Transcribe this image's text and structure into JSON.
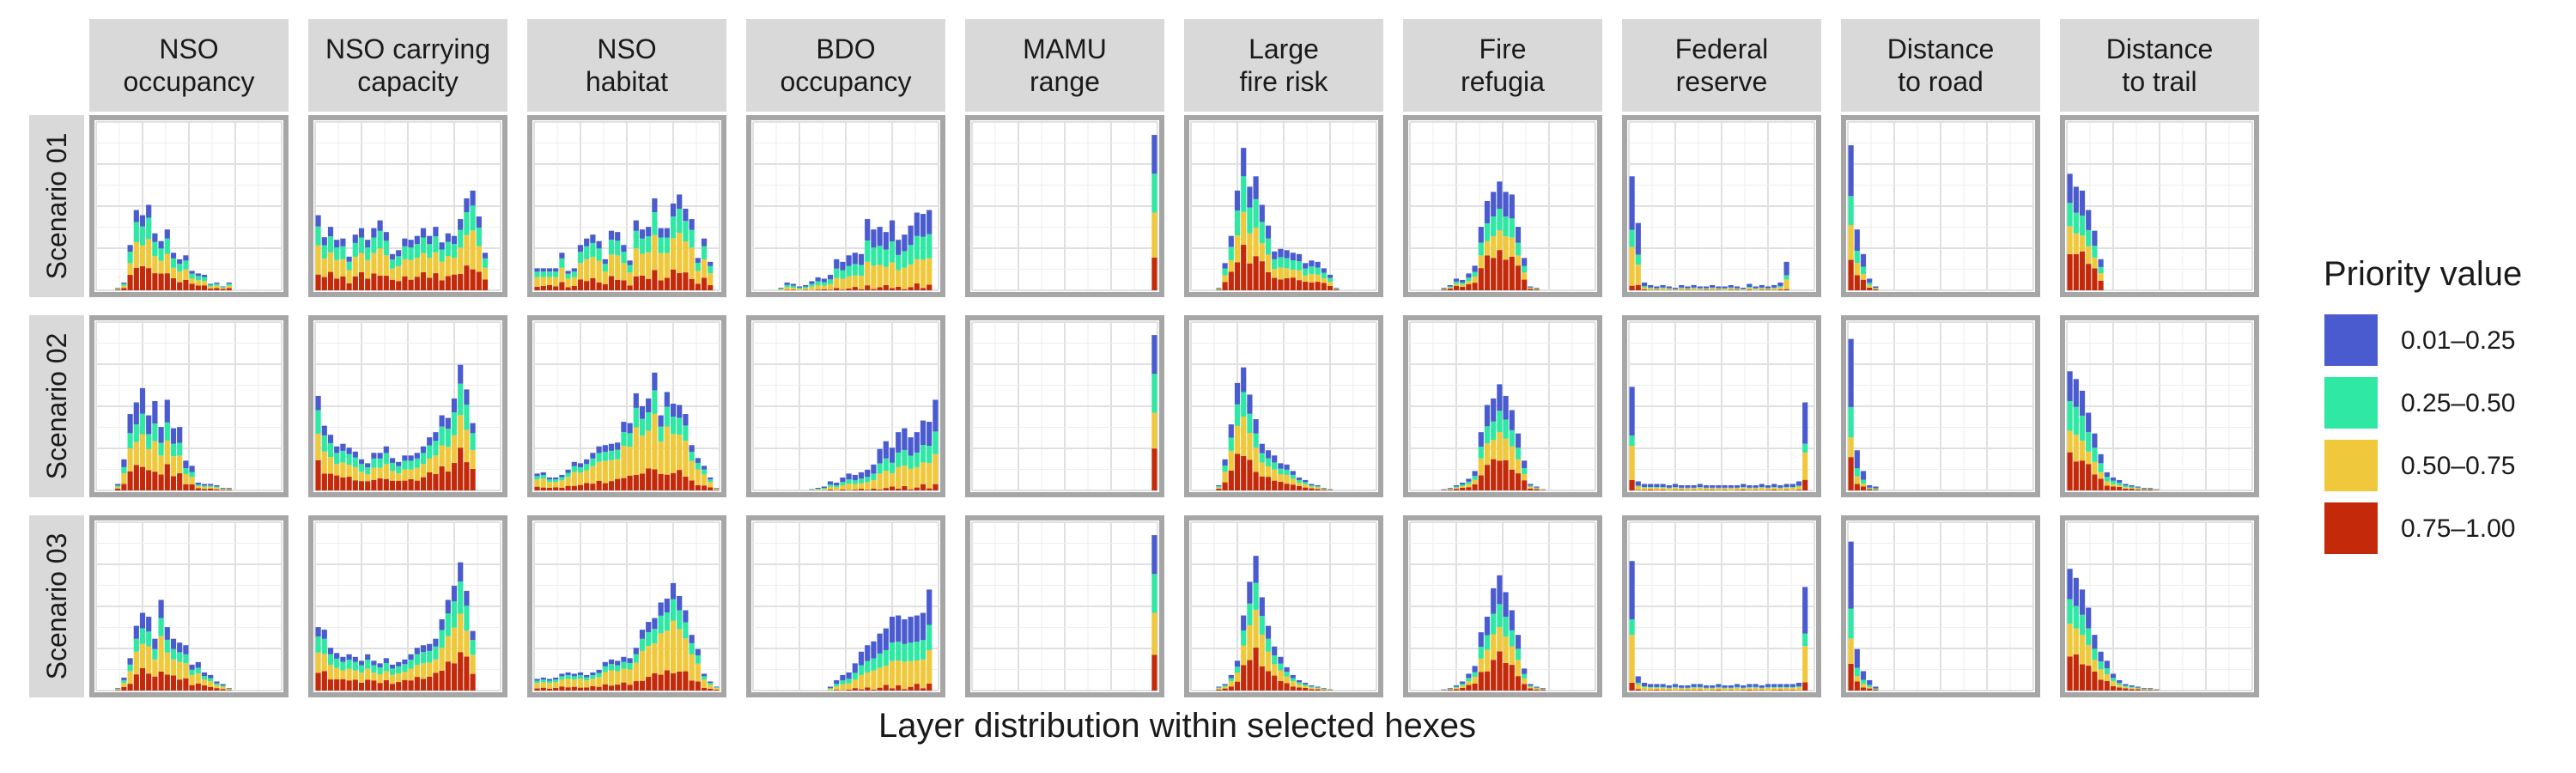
{
  "chart_data": {
    "type": "bar",
    "subtype": "faceted stacked histogram",
    "title": "",
    "xlabel": "Layer distribution within selected hexes",
    "ylabel": "",
    "grid": true,
    "legend_placement": "right",
    "legend": {
      "title": "Priority value",
      "items": [
        {
          "label": "0.01–0.25",
          "color": "#4a5bd0"
        },
        {
          "label": "0.25–0.50",
          "color": "#2ee8a4"
        },
        {
          "label": "0.50–0.75",
          "color": "#f0c83c"
        },
        {
          "label": "0.75–1.00",
          "color": "#c42a0a"
        }
      ]
    },
    "columns": [
      "NSO\noccupancy",
      "NSO carrying\ncapacity",
      "NSO\nhabitat",
      "BDO\noccupancy",
      "MAMU\nrange",
      "Large\nfire risk",
      "Fire\nrefugia",
      "Federal\nreserve",
      "Distance\nto road",
      "Distance\nto trail"
    ],
    "rows": [
      "Scenario 01",
      "Scenario 02",
      "Scenario 03"
    ],
    "bins_per_panel": 30,
    "stack_order": [
      "0.75–1.00",
      "0.50–0.75",
      "0.25–0.50",
      "0.01–0.25"
    ],
    "panels": [
      [
        {
          "start": 3,
          "totals": [
            2,
            6,
            35,
            62,
            58,
            66,
            44,
            38,
            47,
            29,
            24,
            27,
            15,
            13,
            12,
            5,
            6,
            3,
            6
          ],
          "fractions": [
            0.3,
            0.3,
            0.25,
            0.15
          ]
        },
        {
          "start": 0,
          "totals": [
            58,
            41,
            49,
            39,
            40,
            26,
            43,
            48,
            39,
            48,
            54,
            45,
            28,
            31,
            40,
            39,
            42,
            48,
            42,
            49,
            37,
            44,
            42,
            55,
            71,
            77,
            57,
            29
          ],
          "fractions": [
            0.25,
            0.35,
            0.25,
            0.15
          ]
        },
        {
          "start": 0,
          "totals": [
            17,
            17,
            17,
            17,
            29,
            15,
            17,
            35,
            40,
            43,
            38,
            24,
            46,
            45,
            35,
            23,
            54,
            47,
            49,
            71,
            48,
            48,
            67,
            74,
            63,
            55,
            25,
            40,
            22
          ],
          "fractions": [
            0.2,
            0.4,
            0.25,
            0.15
          ]
        },
        {
          "start": 4,
          "totals": [
            2,
            6,
            5,
            3,
            4,
            7,
            10,
            9,
            12,
            24,
            22,
            27,
            29,
            28,
            55,
            47,
            49,
            45,
            54,
            39,
            43,
            50,
            60,
            59,
            62
          ],
          "fractions": [
            0.05,
            0.35,
            0.3,
            0.3
          ]
        },
        {
          "start": 29,
          "totals": [
            120
          ],
          "fractions": [
            0.25,
            0.25,
            0.25,
            0.25
          ]
        },
        {
          "start": 4,
          "totals": [
            2,
            21,
            42,
            77,
            110,
            80,
            88,
            66,
            50,
            30,
            32,
            31,
            29,
            28,
            21,
            23,
            22,
            17,
            12,
            2
          ],
          "fractions": [
            0.3,
            0.25,
            0.25,
            0.2
          ]
        },
        {
          "start": 5,
          "totals": [
            2,
            4,
            9,
            8,
            13,
            19,
            49,
            69,
            76,
            84,
            76,
            74,
            49,
            25,
            3,
            2
          ],
          "fractions": [
            0.35,
            0.2,
            0.2,
            0.25
          ]
        },
        {
          "start": 0,
          "totals": [
            88,
            52,
            6,
            4,
            3,
            4,
            3,
            2,
            4,
            3,
            4,
            3,
            3,
            4,
            3,
            3,
            4,
            3,
            2,
            5,
            3,
            4,
            3,
            4,
            6,
            22
          ],
          "fractions": [
            0.08,
            0.3,
            0.15,
            0.47
          ]
        },
        {
          "start": 0,
          "totals": [
            112,
            47,
            28,
            9,
            3
          ],
          "fractions": [
            0.25,
            0.2,
            0.2,
            0.35
          ]
        },
        {
          "start": 0,
          "totals": [
            90,
            80,
            77,
            62,
            46,
            24
          ],
          "fractions": [
            0.35,
            0.2,
            0.2,
            0.25
          ]
        }
      ],
      [
        {
          "start": 3,
          "totals": [
            5,
            24,
            59,
            68,
            79,
            58,
            69,
            49,
            70,
            48,
            49,
            23,
            19,
            6,
            5,
            5,
            4,
            2,
            2
          ],
          "fractions": [
            0.25,
            0.3,
            0.2,
            0.25
          ]
        },
        {
          "start": 0,
          "totals": [
            73,
            50,
            43,
            34,
            36,
            33,
            30,
            24,
            21,
            29,
            29,
            34,
            25,
            22,
            27,
            27,
            29,
            34,
            41,
            45,
            58,
            56,
            71,
            97,
            78,
            52
          ],
          "fractions": [
            0.3,
            0.3,
            0.25,
            0.15
          ]
        },
        {
          "start": 0,
          "totals": [
            13,
            14,
            10,
            10,
            12,
            16,
            22,
            21,
            24,
            29,
            34,
            35,
            36,
            37,
            53,
            52,
            75,
            65,
            71,
            91,
            58,
            76,
            67,
            66,
            59,
            35,
            25,
            19,
            10,
            2
          ],
          "fractions": [
            0.2,
            0.45,
            0.2,
            0.15
          ]
        },
        {
          "start": 9,
          "totals": [
            1,
            2,
            3,
            7,
            6,
            10,
            13,
            12,
            14,
            16,
            20,
            32,
            38,
            33,
            45,
            48,
            41,
            45,
            54,
            53,
            70
          ],
          "fractions": [
            0.05,
            0.35,
            0.25,
            0.35
          ]
        },
        {
          "start": 29,
          "totals": [
            120
          ],
          "fractions": [
            0.25,
            0.25,
            0.25,
            0.25
          ]
        },
        {
          "start": 4,
          "totals": [
            4,
            24,
            51,
            83,
            95,
            74,
            55,
            36,
            31,
            27,
            21,
            20,
            15,
            10,
            8,
            5,
            4,
            2,
            1
          ],
          "fractions": [
            0.3,
            0.3,
            0.2,
            0.2
          ]
        },
        {
          "start": 5,
          "totals": [
            1,
            2,
            4,
            6,
            9,
            15,
            45,
            66,
            71,
            82,
            73,
            62,
            44,
            23,
            5,
            3,
            1
          ],
          "fractions": [
            0.3,
            0.25,
            0.2,
            0.25
          ]
        },
        {
          "start": 0,
          "totals": [
            80,
            7,
            5,
            5,
            5,
            5,
            4,
            5,
            4,
            4,
            4,
            5,
            4,
            4,
            4,
            4,
            4,
            4,
            5,
            4,
            4,
            5,
            4,
            5,
            4,
            5,
            5,
            7,
            68
          ],
          "fractions": [
            0.08,
            0.35,
            0.1,
            0.47
          ]
        },
        {
          "start": 0,
          "totals": [
            117,
            31,
            15,
            4,
            3
          ],
          "fractions": [
            0.2,
            0.15,
            0.2,
            0.45
          ]
        },
        {
          "start": 0,
          "totals": [
            92,
            86,
            77,
            60,
            44,
            28,
            14,
            10,
            8,
            5,
            4,
            3,
            2,
            2,
            1
          ],
          "fractions": [
            0.3,
            0.2,
            0.25,
            0.25
          ]
        }
      ],
      [
        {
          "start": 3,
          "totals": [
            2,
            10,
            25,
            50,
            60,
            57,
            40,
            70,
            49,
            40,
            37,
            35,
            20,
            22,
            14,
            12,
            7,
            5,
            2
          ],
          "fractions": [
            0.25,
            0.35,
            0.2,
            0.2
          ]
        },
        {
          "start": 0,
          "totals": [
            49,
            47,
            33,
            29,
            26,
            28,
            26,
            23,
            28,
            23,
            21,
            25,
            20,
            22,
            24,
            28,
            33,
            35,
            36,
            40,
            55,
            70,
            81,
            99,
            77,
            46
          ],
          "fractions": [
            0.3,
            0.3,
            0.25,
            0.15
          ]
        },
        {
          "start": 0,
          "totals": [
            9,
            10,
            9,
            10,
            13,
            14,
            13,
            14,
            12,
            14,
            16,
            22,
            24,
            23,
            26,
            25,
            33,
            47,
            53,
            56,
            68,
            71,
            83,
            73,
            62,
            43,
            32,
            13,
            7,
            3
          ],
          "fractions": [
            0.2,
            0.45,
            0.2,
            0.15
          ]
        },
        {
          "start": 12,
          "totals": [
            3,
            8,
            12,
            14,
            21,
            30,
            35,
            38,
            44,
            48,
            57,
            58,
            55,
            57,
            58,
            60,
            78
          ],
          "fractions": [
            0.05,
            0.35,
            0.25,
            0.35
          ]
        },
        {
          "start": 29,
          "totals": [
            120
          ],
          "fractions": [
            0.25,
            0.25,
            0.25,
            0.25
          ]
        },
        {
          "start": 4,
          "totals": [
            3,
            5,
            12,
            23,
            58,
            84,
            104,
            72,
            50,
            34,
            26,
            18,
            12,
            8,
            6,
            4,
            3,
            2,
            1
          ],
          "fractions": [
            0.3,
            0.3,
            0.2,
            0.2
          ]
        },
        {
          "start": 5,
          "totals": [
            1,
            2,
            4,
            7,
            13,
            19,
            45,
            57,
            79,
            89,
            76,
            62,
            43,
            17,
            5,
            3,
            2
          ],
          "fractions": [
            0.3,
            0.25,
            0.2,
            0.25
          ]
        },
        {
          "start": 0,
          "totals": [
            100,
            11,
            6,
            5,
            5,
            5,
            4,
            5,
            4,
            4,
            5,
            5,
            4,
            4,
            5,
            4,
            4,
            5,
            4,
            5,
            5,
            4,
            5,
            5,
            5,
            5,
            5,
            6,
            80
          ],
          "fractions": [
            0.08,
            0.35,
            0.12,
            0.45
          ]
        },
        {
          "start": 0,
          "totals": [
            115,
            32,
            15,
            8,
            3
          ],
          "fractions": [
            0.2,
            0.15,
            0.2,
            0.45
          ]
        },
        {
          "start": 0,
          "totals": [
            94,
            87,
            78,
            64,
            43,
            30,
            23,
            13,
            8,
            5,
            4,
            3,
            2,
            2,
            1
          ],
          "fractions": [
            0.3,
            0.25,
            0.2,
            0.25
          ]
        }
      ]
    ]
  }
}
